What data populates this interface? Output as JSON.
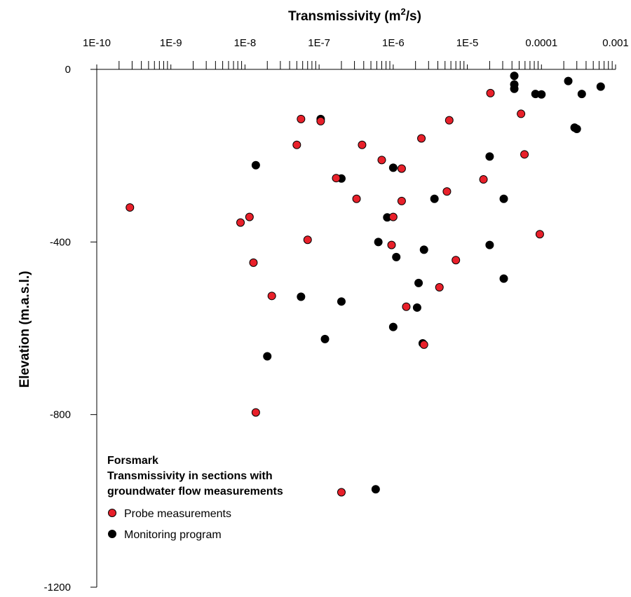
{
  "chart_data": {
    "type": "scatter",
    "title": "",
    "xlabel": "Transmissivity (m²/s)",
    "xlabel_parts": {
      "base": "Transmissivity (m",
      "sup": "2",
      "tail": "/s)"
    },
    "ylabel": "Elevation (m.a.s.l.)",
    "x_scale": "log",
    "xlim": [
      1e-10,
      0.001
    ],
    "ylim": [
      -1200,
      0
    ],
    "x_axis_position": "top",
    "grid": false,
    "x_tick_values": [
      1e-10,
      1e-09,
      1e-08,
      1e-07,
      1e-06,
      1e-05,
      0.0001,
      0.001
    ],
    "x_tick_labels": [
      "1E-10",
      "1E-9",
      "1E-8",
      "1E-7",
      "1E-6",
      "1E-5",
      "0.0001",
      "0.001"
    ],
    "y_tick_values": [
      0,
      -400,
      -800,
      -1200
    ],
    "y_tick_labels": [
      "0",
      "-400",
      "-800",
      "-1200"
    ],
    "legend": {
      "placement": "bottom-left",
      "title_lines": [
        "Forsmark",
        "Transmissivity in sections with",
        "groundwater flow measurements"
      ]
    },
    "series": [
      {
        "name": "Probe measurements",
        "color": "#e8202a",
        "points": [
          [
            2.8e-10,
            -320
          ],
          [
            8.7e-09,
            -355
          ],
          [
            1.15e-08,
            -342
          ],
          [
            1.3e-08,
            -448
          ],
          [
            1.4e-08,
            -795
          ],
          [
            2.3e-08,
            -525
          ],
          [
            5e-08,
            -175
          ],
          [
            5.7e-08,
            -115
          ],
          [
            7e-08,
            -395
          ],
          [
            1.05e-07,
            -120
          ],
          [
            1.7e-07,
            -252
          ],
          [
            2e-07,
            -980
          ],
          [
            3.2e-07,
            -300
          ],
          [
            3.8e-07,
            -175
          ],
          [
            7e-07,
            -210
          ],
          [
            9.5e-07,
            -407
          ],
          [
            1e-06,
            -342
          ],
          [
            1.3e-06,
            -230
          ],
          [
            1.3e-06,
            -305
          ],
          [
            1.5e-06,
            -550
          ],
          [
            2.4e-06,
            -160
          ],
          [
            2.6e-06,
            -638
          ],
          [
            4.2e-06,
            -505
          ],
          [
            5.3e-06,
            -283
          ],
          [
            5.7e-06,
            -118
          ],
          [
            7e-06,
            -442
          ],
          [
            1.65e-05,
            -255
          ],
          [
            2.05e-05,
            -55
          ],
          [
            5.3e-05,
            -103
          ],
          [
            5.9e-05,
            -197
          ],
          [
            9.5e-05,
            -382
          ]
        ]
      },
      {
        "name": "Monitoring program",
        "color": "#000000",
        "points": [
          [
            1.4e-08,
            -222
          ],
          [
            2e-08,
            -665
          ],
          [
            5.7e-08,
            -527
          ],
          [
            1.05e-07,
            -115
          ],
          [
            1.2e-07,
            -625
          ],
          [
            2e-07,
            -538
          ],
          [
            2e-07,
            -253
          ],
          [
            6.3e-07,
            -400
          ],
          [
            5.8e-07,
            -973
          ],
          [
            8.3e-07,
            -343
          ],
          [
            1e-06,
            -228
          ],
          [
            1e-06,
            -597
          ],
          [
            1.1e-06,
            -435
          ],
          [
            2.1e-06,
            -552
          ],
          [
            2.2e-06,
            -495
          ],
          [
            2.5e-06,
            -635
          ],
          [
            2.6e-06,
            -418
          ],
          [
            3.6e-06,
            -300
          ],
          [
            2e-05,
            -202
          ],
          [
            2e-05,
            -407
          ],
          [
            3.1e-05,
            -300
          ],
          [
            3.1e-05,
            -485
          ],
          [
            4.3e-05,
            -15
          ],
          [
            4.3e-05,
            -35
          ],
          [
            4.3e-05,
            -45
          ],
          [
            8.3e-05,
            -57
          ],
          [
            0.0001,
            -58
          ],
          [
            0.00023,
            -27
          ],
          [
            0.00028,
            -135
          ],
          [
            0.0003,
            -138
          ],
          [
            0.00035,
            -57
          ],
          [
            0.00063,
            -40
          ]
        ]
      }
    ]
  }
}
